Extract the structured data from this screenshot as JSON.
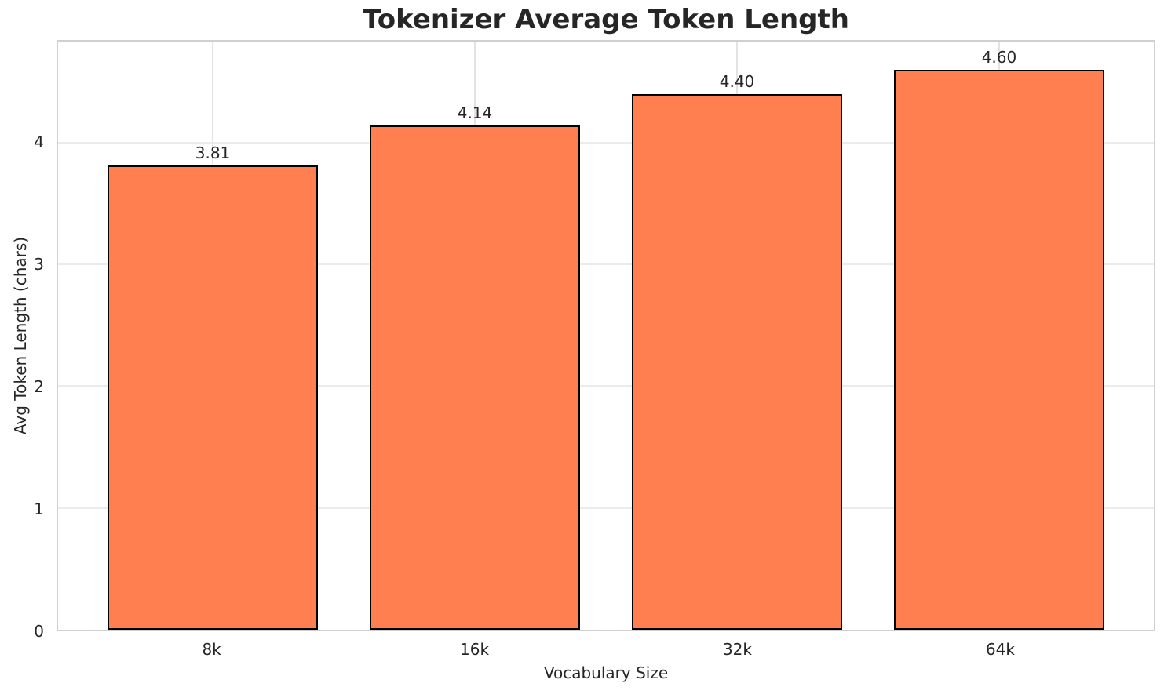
{
  "chart_data": {
    "type": "bar",
    "title": "Tokenizer Average Token Length",
    "xlabel": "Vocabulary Size",
    "ylabel": "Avg Token Length (chars)",
    "categories": [
      "8k",
      "16k",
      "32k",
      "64k"
    ],
    "values": [
      3.81,
      4.14,
      4.4,
      4.6
    ],
    "value_labels": [
      "3.81",
      "4.14",
      "4.40",
      "4.60"
    ],
    "yticks": [
      0,
      1,
      2,
      3,
      4
    ],
    "ylim": [
      0,
      4.83
    ],
    "xlim": [
      -0.59,
      3.59
    ],
    "bar_width": 0.8,
    "grid": true,
    "legend": false,
    "colors": {
      "bar_fill": "#FF7F50",
      "bar_edge": "#000000",
      "text": "#262626",
      "grid_h": "#ebebeb",
      "grid_v": "#e3e3e3",
      "spine": "#d0d0d0",
      "background": "#ffffff"
    }
  }
}
